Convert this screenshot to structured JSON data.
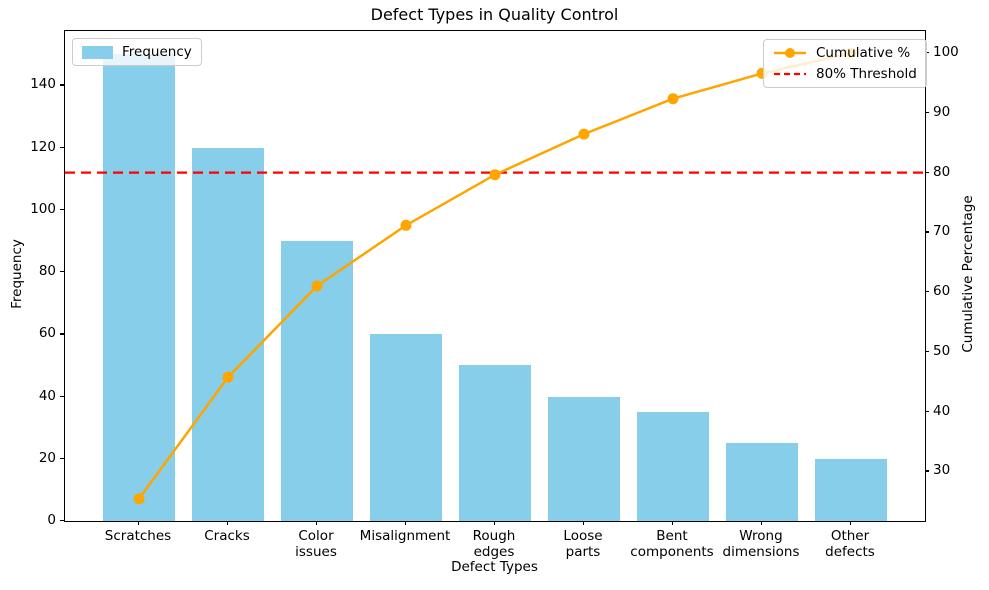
{
  "chart_data": {
    "type": "bar",
    "subtype": "pareto-bar-line-combo",
    "title": "Defect Types in Quality Control",
    "xlabel": "Defect Types",
    "ylabel_left": "Frequency",
    "ylabel_right": "Cumulative Percentage",
    "grid": false,
    "categories": [
      "Scratches",
      "Cracks",
      "Color issues",
      "Misalignment",
      "Rough edges",
      "Loose parts",
      "Bent components",
      "Wrong dimensions",
      "Other defects"
    ],
    "series": [
      {
        "name": "Frequency",
        "type": "bar",
        "axis": "left",
        "color": "#87CEEB",
        "values": [
          150,
          120,
          90,
          60,
          50,
          40,
          35,
          25,
          20
        ]
      },
      {
        "name": "Cumulative %",
        "type": "line",
        "axis": "right",
        "color": "#FFA500",
        "marker": "circle",
        "values": [
          25.42,
          45.76,
          61.02,
          71.19,
          79.66,
          86.44,
          92.37,
          96.61,
          100.0
        ]
      }
    ],
    "threshold_line": {
      "label": "80% Threshold",
      "value": 80,
      "axis": "right",
      "color": "#FF0000",
      "style": "dashed"
    },
    "axes": {
      "left": {
        "ticks": [
          0,
          20,
          40,
          60,
          80,
          100,
          120,
          140
        ],
        "range": [
          0,
          157.5
        ]
      },
      "right": {
        "ticks": [
          30,
          40,
          50,
          60,
          70,
          80,
          90,
          100
        ],
        "range": [
          21.7,
          103.7
        ]
      }
    },
    "legend_left": {
      "position": "upper left",
      "items": [
        {
          "label": "Frequency",
          "color": "#87CEEB",
          "glyph": "patch"
        }
      ]
    },
    "legend_right": {
      "position": "upper right",
      "items": [
        {
          "label": "Cumulative %",
          "color": "#FFA500",
          "glyph": "line-marker"
        },
        {
          "label": "80% Threshold",
          "color": "#FF0000",
          "glyph": "dashed-line"
        }
      ]
    }
  }
}
